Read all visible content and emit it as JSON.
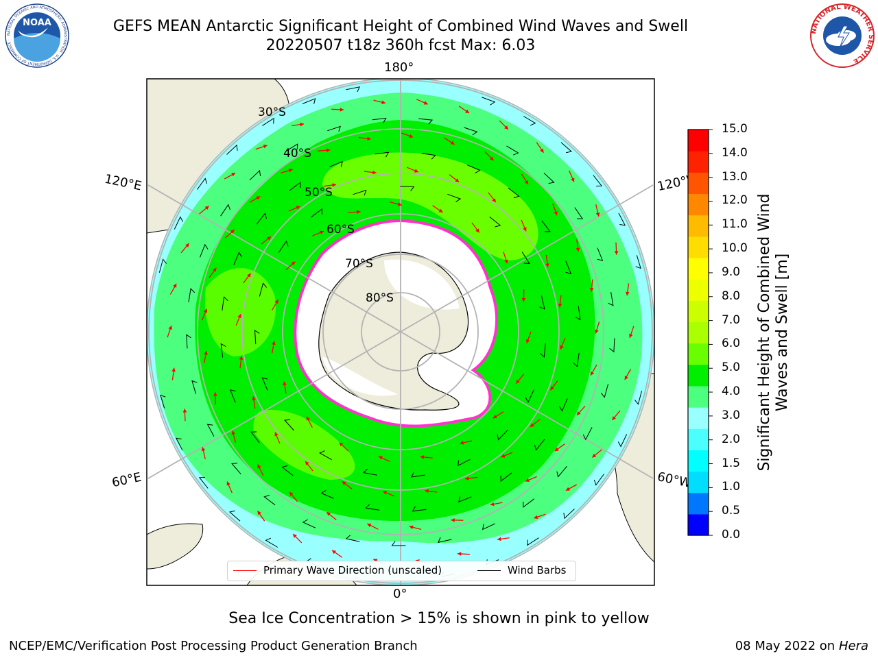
{
  "title": {
    "line1": "GEFS MEAN Antarctic Significant Height of Combined Wind Waves and Swell",
    "line2": "20220507 t18z 360h fcst   Max: 6.03"
  },
  "map": {
    "longitude_labels": {
      "top": "180°",
      "bottom": "0°",
      "upper_left": "120°E",
      "lower_left": "60°E",
      "upper_right": "120°W",
      "lower_right": "60°W"
    },
    "latitude_labels": [
      "30°S",
      "40°S",
      "50°S",
      "60°S",
      "70°S",
      "80°S"
    ],
    "colors": {
      "land": "#eeecda",
      "ice_sheet": "#ffffff",
      "band_2_3": "#99ffff",
      "band_3_4": "#4cff7e",
      "band_4_5": "#00ee00",
      "band_5_6": "#6aff00",
      "sea_ice": "#ff33cc",
      "wave_arrows": "#ff0000",
      "wind_barbs": "#000000"
    }
  },
  "colorbar": {
    "label": "Significant Height of Combined Wind Waves and Swell [m]",
    "ticks": [
      "15.0",
      "14.0",
      "13.0",
      "12.0",
      "11.0",
      "10.0",
      "9.0",
      "8.0",
      "7.0",
      "6.0",
      "5.0",
      "4.0",
      "3.0",
      "2.0",
      "1.5",
      "1.0",
      "0.5",
      "0.0"
    ],
    "colors": [
      "#0000ff",
      "#0077ff",
      "#00ddff",
      "#00ffff",
      "#4cffff",
      "#99ffff",
      "#4cff7e",
      "#00ee00",
      "#6aff00",
      "#aaff00",
      "#ccff00",
      "#eeff00",
      "#ffff00",
      "#ffdd00",
      "#ffbb00",
      "#ff8800",
      "#ff5500",
      "#ff2200",
      "#ff0000"
    ]
  },
  "legend": {
    "wave_direction": "Primary Wave Direction (unscaled)",
    "wind_barbs": "Wind Barbs"
  },
  "footer": {
    "sea_ice_note": "Sea Ice Concentration > 15% is shown in pink to yellow",
    "credit": "NCEP/EMC/Verification Post Processing Product Generation Branch",
    "date": "08 May 2022 on",
    "machine": "Hera"
  },
  "logos": {
    "left": "NOAA",
    "right": "NATIONAL WEATHER SERVICE"
  }
}
